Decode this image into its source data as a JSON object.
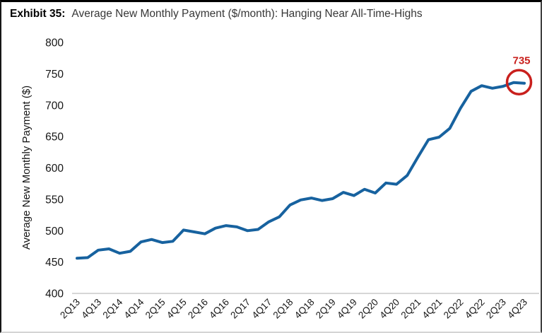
{
  "title": {
    "prefix": "Exhibit 35:",
    "text": "Average New Monthly Payment ($/month): Hanging Near All-Time-Highs"
  },
  "chart_data": {
    "type": "line",
    "title": "Average New Monthly Payment ($/month): Hanging Near All-Time-Highs",
    "xlabel": "",
    "ylabel": "Average New Monthly Payment ($)",
    "ylim": [
      400,
      800
    ],
    "ytick_step": 50,
    "grid": false,
    "legend": "none",
    "x": [
      "2Q13",
      "3Q13",
      "4Q13",
      "1Q14",
      "2Q14",
      "3Q14",
      "4Q14",
      "1Q15",
      "2Q15",
      "3Q15",
      "4Q15",
      "1Q16",
      "2Q16",
      "3Q16",
      "4Q16",
      "1Q17",
      "2Q17",
      "3Q17",
      "4Q17",
      "1Q18",
      "2Q18",
      "3Q18",
      "4Q18",
      "1Q19",
      "2Q19",
      "3Q19",
      "4Q19",
      "1Q20",
      "2Q20",
      "3Q20",
      "4Q20",
      "1Q21",
      "2Q21",
      "3Q21",
      "4Q21",
      "1Q22",
      "2Q22",
      "3Q22",
      "4Q22",
      "1Q23",
      "2Q23",
      "3Q23",
      "4Q23"
    ],
    "x_tick_labels": [
      "2Q13",
      "4Q13",
      "2Q14",
      "4Q14",
      "2Q15",
      "4Q15",
      "2Q16",
      "4Q16",
      "2Q17",
      "4Q17",
      "2Q18",
      "4Q18",
      "2Q19",
      "4Q19",
      "2Q20",
      "4Q20",
      "2Q21",
      "4Q21",
      "2Q22",
      "4Q22",
      "2Q23",
      "4Q23"
    ],
    "series": [
      {
        "name": "Average New Monthly Payment",
        "color": "#17629f",
        "values": [
          456,
          457,
          469,
          471,
          464,
          467,
          482,
          486,
          481,
          483,
          501,
          498,
          495,
          504,
          508,
          506,
          500,
          502,
          514,
          522,
          541,
          549,
          552,
          548,
          551,
          561,
          556,
          566,
          560,
          576,
          574,
          588,
          617,
          645,
          649,
          663,
          695,
          722,
          731,
          727,
          730,
          736,
          735
        ]
      }
    ],
    "annotation": {
      "label": "735",
      "value": 735,
      "color": "#c9201d"
    },
    "axis_line_color": "#c9c9c9"
  }
}
